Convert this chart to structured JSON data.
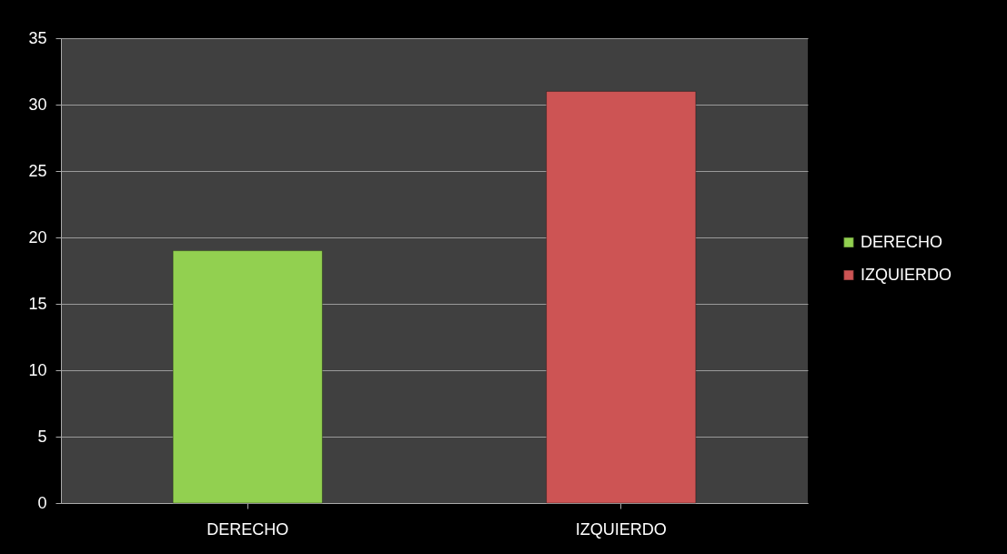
{
  "chart_data": {
    "type": "bar",
    "categories": [
      "DERECHO",
      "IZQUIERDO"
    ],
    "stacked": true,
    "series": [
      {
        "name": "DERECHO",
        "color": "#92d050",
        "values": [
          19,
          null
        ]
      },
      {
        "name": "IZQUIERDO",
        "color": "#cd5454",
        "values": [
          null,
          31
        ]
      }
    ],
    "ylim": [
      0,
      35
    ],
    "yticks": [
      0,
      5,
      10,
      15,
      20,
      25,
      30,
      35
    ],
    "grid": "y",
    "legend": "right"
  }
}
